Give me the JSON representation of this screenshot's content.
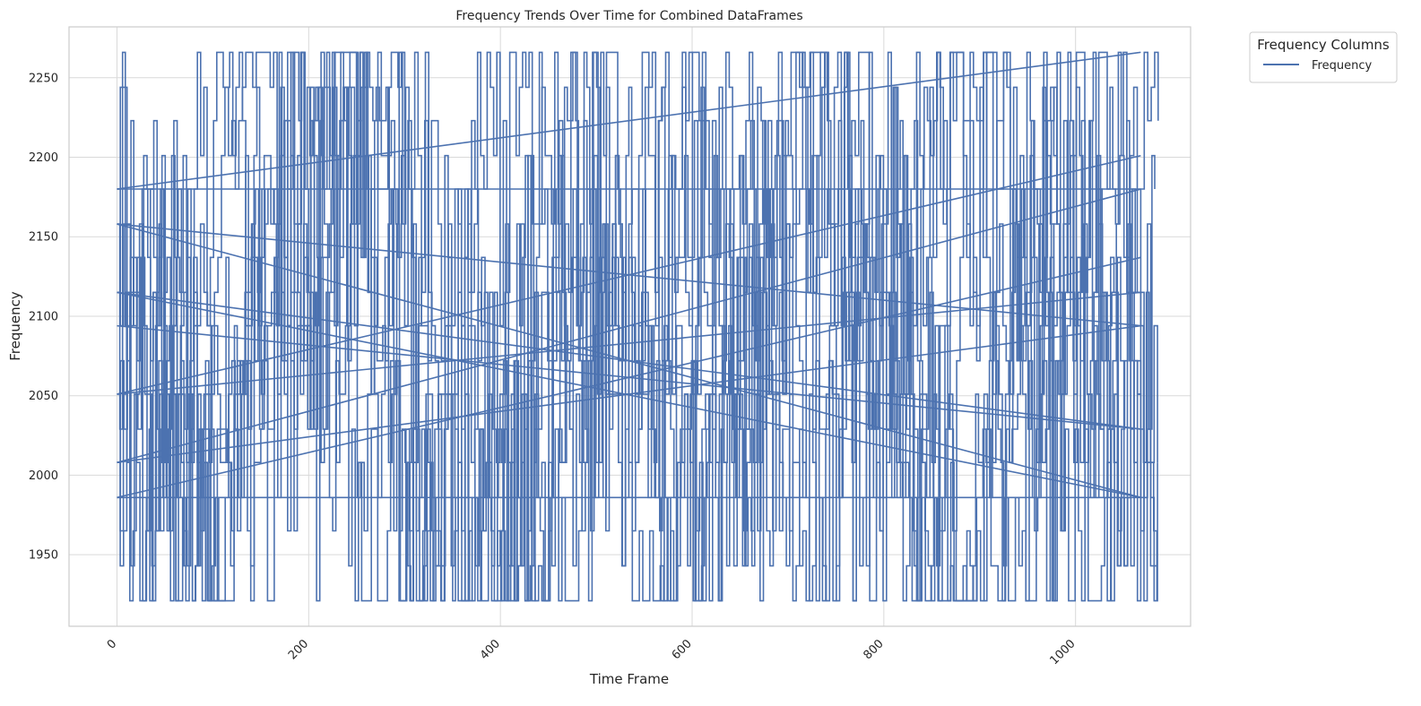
{
  "chart_data": {
    "type": "line",
    "title": "Frequency Trends Over Time for Combined DataFrames",
    "xlabel": "Time Frame",
    "ylabel": "Frequency",
    "xlim": [
      -50,
      1120
    ],
    "ylim": [
      1905,
      2282
    ],
    "x_ticks": [
      0,
      200,
      400,
      600,
      800,
      1000
    ],
    "x_tick_labels": [
      "0",
      "200",
      "400",
      "600",
      "800",
      "1000"
    ],
    "y_ticks": [
      1950,
      2000,
      2050,
      2100,
      2150,
      2200,
      2250
    ],
    "y_tick_labels": [
      "1950",
      "2000",
      "2050",
      "2100",
      "2150",
      "2200",
      "2250"
    ],
    "grid": true,
    "legend": {
      "title": "Frequency Columns",
      "placement": "outside-top-right"
    },
    "x_range": [
      0,
      1068
    ],
    "frequency_levels": [
      1921,
      1943,
      1965,
      1986,
      2008,
      2029,
      2051,
      2072,
      2094,
      2115,
      2137,
      2158,
      2180,
      2201,
      2223,
      2244,
      2266
    ],
    "series": [
      {
        "name": "Frequency",
        "color": "#4c72b0",
        "segments": [
          {
            "x_start": 0,
            "x_end": 1068,
            "values": [
              2158,
              2115,
              2072,
              2008,
              1943,
              1986,
              2051,
              2094,
              2137,
              2180,
              2223,
              2266,
              2244,
              2201,
              2158,
              2115,
              2072,
              2029,
              1986,
              1943,
              1921,
              1965,
              2008,
              2051,
              2094,
              2137,
              2180,
              2223,
              2244,
              2201,
              2137,
              2072,
              2008,
              1965,
              1943,
              1986,
              2029,
              2072,
              2115,
              2158,
              2201,
              2244,
              2266,
              2223,
              2180,
              2137,
              2094,
              2051,
              2008,
              1965,
              1921,
              1943,
              1986,
              2029,
              2072,
              2115,
              2158,
              2201,
              2223,
              2180,
              2137,
              2094
            ]
          },
          {
            "x_start": 0,
            "x_end": 1068,
            "values": [
              2008,
              2051,
              2094,
              2137,
              2180,
              2223,
              2201,
              2158,
              2115,
              2072,
              2029,
              1986,
              1943,
              1921,
              1965,
              2008,
              2051,
              2094,
              2137,
              2180,
              2223,
              2266,
              2244,
              2201,
              2158,
              2115,
              2072,
              2029,
              1986,
              1943,
              1965,
              2008,
              2051,
              2094,
              2137,
              2180,
              2201,
              2158,
              2115,
              2072,
              2029,
              1986,
              1943,
              1921,
              1965,
              2008,
              2051,
              2094,
              2137,
              2158,
              2115,
              2072,
              2029,
              1986
            ]
          },
          {
            "x_start": 0,
            "x_end": 1068,
            "values": [
              1986,
              2029,
              2072,
              2115,
              2158,
              2201,
              2244,
              2266,
              2223,
              2180,
              2137,
              2094,
              2051,
              2008,
              1965,
              1921,
              1943,
              1986,
              2029,
              2072,
              2115,
              2137,
              2094,
              2051,
              2008,
              1965,
              1943,
              1986,
              2029,
              2072,
              2115,
              2158,
              2201,
              2244,
              2223,
              2180,
              2137,
              2094,
              2051,
              2008,
              1965,
              1921,
              1943,
              1986,
              2029,
              2072,
              2115,
              2158,
              2201,
              2180
            ]
          },
          {
            "x_start": 0,
            "x_end": 1068,
            "values": [
              2180,
              2137,
              2094,
              2051,
              2008,
              2029,
              2072,
              2115,
              2158,
              2201,
              2244,
              2266,
              2223,
              2180,
              2137,
              2094,
              2051,
              2008,
              1965,
              1921,
              1943,
              1986,
              2029,
              2072,
              2115,
              2158,
              2201,
              2223,
              2180,
              2137,
              2094,
              2051,
              2008,
              1965,
              1943,
              1986,
              2029,
              2072,
              2115,
              2158,
              2201,
              2244,
              2266,
              2223,
              2180,
              2137,
              2094,
              2051,
              2008,
              2029,
              2072,
              2115
            ]
          },
          {
            "x_start": 0,
            "x_end": 1068,
            "values": [
              2051,
              2008,
              1965,
              1921,
              1943,
              1986,
              2029,
              2072,
              2115,
              2158,
              2201,
              2244,
              2266,
              2223,
              2180,
              2137,
              2094,
              2051,
              2008,
              1965,
              1921,
              1943,
              1986,
              2029,
              2072,
              2115,
              2158,
              2201,
              2180,
              2137,
              2094,
              2051,
              2008,
              1965,
              1943,
              1986,
              2029,
              2072,
              2115,
              2158,
              2201,
              2244,
              2223,
              2180,
              2137,
              2094,
              2051,
              2008,
              1965,
              1921,
              1943,
              1986,
              2029
            ]
          },
          {
            "x_start": 0,
            "x_end": 1068,
            "values": [
              2115,
              2072,
              2029,
              1986,
              1943,
              1921,
              1965,
              2008,
              2051,
              2094,
              2137,
              2180,
              2223,
              2266,
              2244,
              2201,
              2158,
              2115,
              2072,
              2029,
              1986,
              1943,
              1921,
              1965,
              2008,
              2051,
              2094,
              2137,
              2180,
              2223,
              2244,
              2201,
              2158,
              2115,
              2072,
              2029,
              1986,
              1943,
              1965,
              2008,
              2051,
              2094,
              2137,
              2180,
              2223,
              2201,
              2158,
              2115,
              2072,
              2029,
              1986,
              1965
            ]
          }
        ]
      }
    ]
  }
}
